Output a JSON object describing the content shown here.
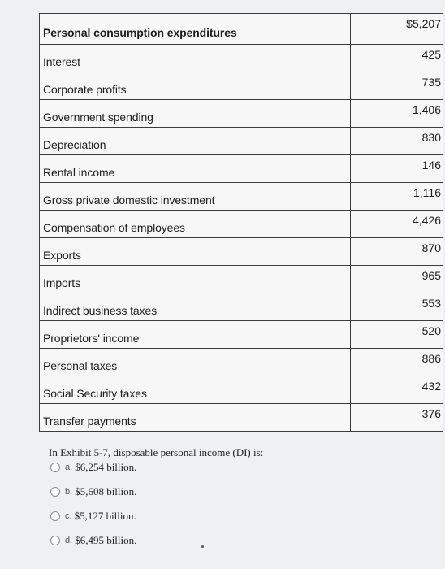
{
  "exhibit": {
    "rows": [
      {
        "label": "Personal consumption expenditures",
        "value": "$5,207"
      },
      {
        "label": "Interest",
        "value": "425"
      },
      {
        "label": "Corporate profits",
        "value": "735"
      },
      {
        "label": "Government spending",
        "value": "1,406"
      },
      {
        "label": "Depreciation",
        "value": "830"
      },
      {
        "label": "Rental income",
        "value": "146"
      },
      {
        "label": "Gross private domestic investment",
        "value": "1,116"
      },
      {
        "label": "Compensation of employees",
        "value": "4,426"
      },
      {
        "label": "Exports",
        "value": "870"
      },
      {
        "label": "Imports",
        "value": "965"
      },
      {
        "label": "Indirect business taxes",
        "value": "553"
      },
      {
        "label": "Proprietors' income",
        "value": "520"
      },
      {
        "label": "Personal taxes",
        "value": "886"
      },
      {
        "label": "Social Security taxes",
        "value": "432"
      },
      {
        "label": "Transfer payments",
        "value": "376"
      }
    ]
  },
  "question": {
    "text": "In Exhibit 5-7, disposable personal income (DI) is:",
    "options": [
      {
        "letter": "a.",
        "text": "$6,254 billion."
      },
      {
        "letter": "b.",
        "text": "$5,608 billion."
      },
      {
        "letter": "c.",
        "text": "$5,127 billion."
      },
      {
        "letter": "d.",
        "text": "$6,495 billion."
      }
    ]
  }
}
